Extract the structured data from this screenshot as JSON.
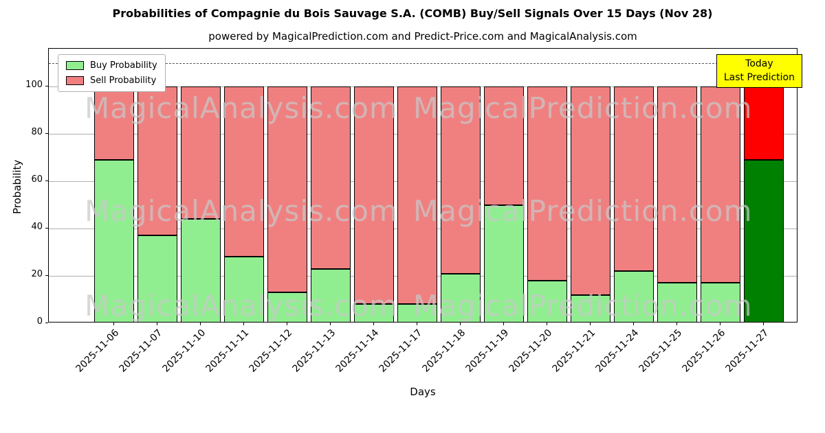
{
  "colors": {
    "buy": "#90ee90",
    "sell": "#f08080",
    "today_buy": "#008000",
    "today_sell": "#ff0000",
    "edge": "#000000",
    "grid": "#b0b0b0",
    "dashed_line": "#555555",
    "annotation_bg": "#ffff00",
    "watermark": "#c9c9c9"
  },
  "watermark": {
    "left": "MagicalAnalysis.com",
    "right": "MagicalPrediction.com"
  },
  "chart_data": {
    "type": "bar",
    "stacked": true,
    "title": "Probabilities of Compagnie du Bois Sauvage S.A. (COMB) Buy/Sell Signals Over 15 Days (Nov 28)",
    "subtitle": "powered by MagicalPrediction.com and Predict-Price.com and MagicalAnalysis.com",
    "xlabel": "Days",
    "ylabel": "Probability",
    "categories": [
      "2025-11-06",
      "2025-11-07",
      "2025-11-10",
      "2025-11-11",
      "2025-11-12",
      "2025-11-13",
      "2025-11-14",
      "2025-11-17",
      "2025-11-18",
      "2025-11-19",
      "2025-11-20",
      "2025-11-21",
      "2025-11-24",
      "2025-11-25",
      "2025-11-26",
      "2025-11-27"
    ],
    "series": [
      {
        "name": "Buy Probability",
        "values": [
          69,
          37,
          44,
          28,
          13,
          23,
          8,
          8,
          21,
          50,
          18,
          12,
          22,
          17,
          17,
          69
        ]
      },
      {
        "name": "Sell Probability",
        "values": [
          31,
          63,
          56,
          72,
          87,
          77,
          92,
          92,
          79,
          50,
          82,
          88,
          78,
          83,
          83,
          31
        ]
      }
    ],
    "yticks": [
      0,
      20,
      40,
      60,
      80,
      100
    ],
    "ylim": [
      0,
      116
    ],
    "guide_line_y": 110,
    "today_index": 15,
    "grid": true,
    "legend_position": "upper left",
    "annotation": {
      "lines": [
        "Today",
        "Last Prediction"
      ]
    }
  }
}
